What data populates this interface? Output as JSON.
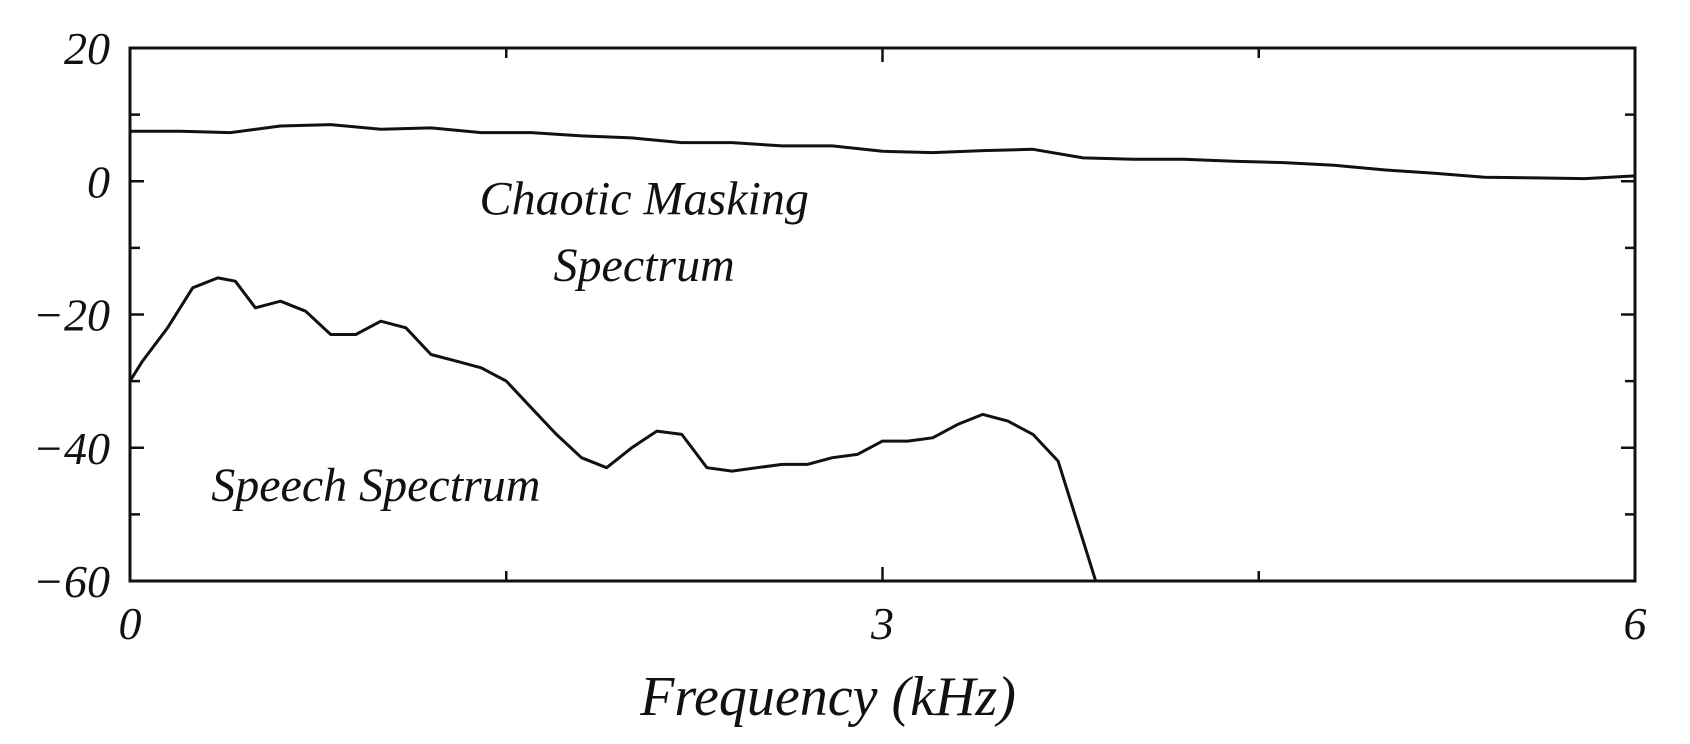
{
  "chart_data": {
    "type": "line",
    "title": "",
    "xlabel": "Frequency (kHz)",
    "ylabel": "",
    "xlim": [
      0,
      6
    ],
    "ylim": [
      -60,
      20
    ],
    "x_ticks": [
      0,
      3,
      6
    ],
    "x_tick_labels": [
      "0",
      "3",
      "6"
    ],
    "x_minor_ticks": [
      1.5,
      4.5
    ],
    "y_ticks": [
      20,
      0,
      -20,
      -40,
      -60
    ],
    "y_tick_labels": [
      "20",
      "0",
      "−20",
      "−40",
      "−60"
    ],
    "y_minor_ticks": [
      10,
      -10,
      -30,
      -50
    ],
    "grid": false,
    "annotations": [
      {
        "text": "Chaotic Masking",
        "x": 2.05,
        "y": -5
      },
      {
        "text": "Spectrum",
        "x": 2.05,
        "y": -15
      },
      {
        "text": "Speech Spectrum",
        "x": 0.98,
        "y": -48
      }
    ],
    "series": [
      {
        "x": [
          0,
          0.2,
          0.4,
          0.6,
          0.8,
          1.0,
          1.2,
          1.4,
          1.6,
          1.8,
          2.0,
          2.2,
          2.4,
          2.6,
          2.8,
          3.0,
          3.2,
          3.4,
          3.6,
          3.8,
          4.0,
          4.2,
          4.4,
          4.6,
          4.8,
          5.0,
          5.2,
          5.4,
          5.6,
          5.8,
          6.0
        ],
        "y": [
          7.5,
          7.5,
          7.3,
          8.3,
          8.5,
          7.8,
          8.0,
          7.3,
          7.3,
          6.8,
          6.5,
          5.8,
          5.8,
          5.3,
          5.3,
          4.5,
          4.3,
          4.6,
          4.8,
          3.5,
          3.3,
          3.3,
          3.0,
          2.8,
          2.4,
          1.7,
          1.2,
          0.6,
          0.5,
          0.4,
          0.8
        ]
      },
      {
        "x": [
          0,
          0.05,
          0.15,
          0.25,
          0.35,
          0.42,
          0.5,
          0.6,
          0.7,
          0.8,
          0.9,
          1.0,
          1.1,
          1.2,
          1.3,
          1.4,
          1.5,
          1.6,
          1.7,
          1.8,
          1.9,
          2.0,
          2.1,
          2.2,
          2.3,
          2.4,
          2.5,
          2.6,
          2.7,
          2.8,
          2.9,
          3.0,
          3.1,
          3.2,
          3.3,
          3.4,
          3.5,
          3.6,
          3.7,
          3.75,
          3.8,
          3.85
        ],
        "y": [
          -30,
          -27,
          -22,
          -16,
          -14.5,
          -15,
          -19,
          -18,
          -19.5,
          -23,
          -23,
          -21,
          -22,
          -26,
          -27,
          -28,
          -30,
          -34,
          -38,
          -41.5,
          -43,
          -40,
          -37.5,
          -38,
          -43,
          -43.5,
          -43,
          -42.5,
          -42.5,
          -41.5,
          -41,
          -39,
          -39,
          -38.5,
          -36.5,
          -35,
          -36,
          -38,
          -42,
          -48,
          -54,
          -60
        ]
      }
    ]
  }
}
